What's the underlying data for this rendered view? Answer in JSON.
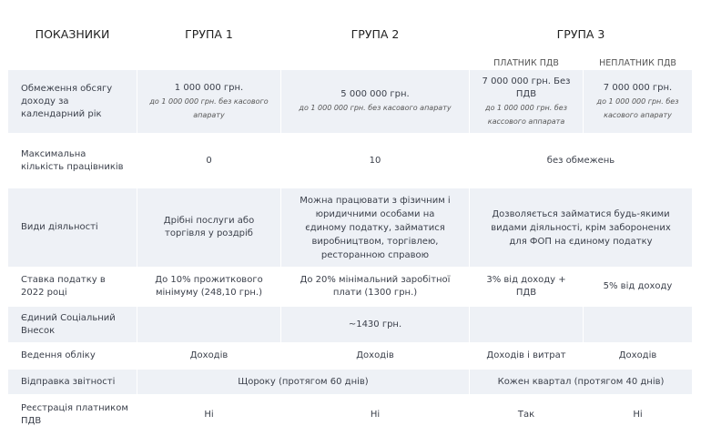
{
  "headers": {
    "indicators": "ПОКАЗНИКИ",
    "g1": "ГРУПА 1",
    "g2": "ГРУПА 2",
    "g3": "ГРУПА 3",
    "g3a": "ПЛАТНИК ПДВ",
    "g3b": "НЕПЛАТНИК ПДВ"
  },
  "rows": {
    "income": {
      "label": "Обмеження обсягу доходу за календарний рік",
      "g1": "1 000 000 грн.",
      "g1n": "до 1 000 000 грн. без касового апарату",
      "g2": "5 000 000 грн.",
      "g2n": "до 1 000 000 грн. без касового апарату",
      "g3a": "7 000 000 грн. Без ПДВ",
      "g3an": "до 1 000 000 грн. без кассового аппарата",
      "g3b": "7 000 000 грн.",
      "g3bn": "до 1 000 000 грн. без касового апарату"
    },
    "workers": {
      "label": "Максимальна кількість працівників",
      "g1": "0",
      "g2": "10",
      "g3": "без обмежень"
    },
    "activity": {
      "label": "Види діяльності",
      "g1": "Дрібні послуги або торгівля у роздріб",
      "g2": "Можна працювати з фізичним і юридичними особами на єдиному податку, займатися виробництвом, торгівлею, ресторанною справою",
      "g3": "Дозволяється займатися будь-якими видами діяльності, крім заборонених для ФОП на єдиному податку"
    },
    "rate": {
      "label": "Ставка податку в 2022 році",
      "g1": "До 10% прожиткового мінімуму (248,10 грн.)",
      "g2": "До 20% мінімальний заробітної плати (1300 грн.)",
      "g3a": "3% від доходу + ПДВ",
      "g3b": "5% від доходу"
    },
    "esv": {
      "label": "Єдиний Соціальний Внесок",
      "g12": "~1430 грн."
    },
    "accounting": {
      "label": "Ведення обліку",
      "g1": "Доходів",
      "g2": "Доходів",
      "g3a": "Доходів і витрат",
      "g3b": "Доходів"
    },
    "reporting": {
      "label": "Відправка звітності",
      "g12": "Щороку (протягом 60 днів)",
      "g3": "Кожен квартал (протягом 40 днів)"
    },
    "vat": {
      "label": "Реєстрація платником ПДВ",
      "g1": "Ні",
      "g2": "Ні",
      "g3a": "Так",
      "g3b": "Ні"
    }
  }
}
